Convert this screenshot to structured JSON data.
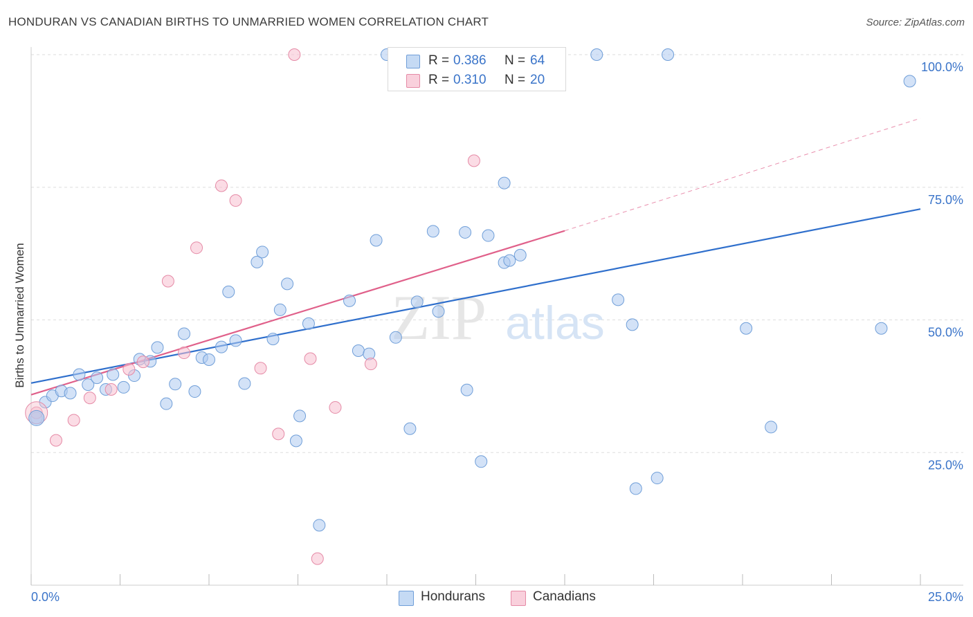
{
  "header": {
    "title": "HONDURAN VS CANADIAN BIRTHS TO UNMARRIED WOMEN CORRELATION CHART",
    "source": "Source: ZipAtlas.com"
  },
  "legend": {
    "rows": [
      {
        "r_label": "R =",
        "r_value": "0.386",
        "n_label": "N =",
        "n_value": "64"
      },
      {
        "r_label": "R =",
        "r_value": "0.310",
        "n_label": "N =",
        "n_value": "20"
      }
    ]
  },
  "bottom_legend": {
    "items": [
      {
        "label": "Hondurans"
      },
      {
        "label": "Canadians"
      }
    ]
  },
  "watermark": {
    "left": "ZIP",
    "right": "atlas"
  },
  "colors": {
    "blue_fill": "#aecbf0",
    "blue_stroke": "#6f9ed8",
    "blue_line": "#2f6fcc",
    "pink_fill": "#f7c0cf",
    "pink_stroke": "#e58aa6",
    "pink_line": "#e0608a",
    "tick_label": "#3a74c9",
    "grid": "#dddddd"
  },
  "chart_data": {
    "type": "scatter",
    "title": "HONDURAN VS CANADIAN BIRTHS TO UNMARRIED WOMEN CORRELATION CHART",
    "xlabel": "",
    "ylabel": "Births to Unmarried Women",
    "xlim": [
      0,
      25
    ],
    "ylim": [
      0,
      100
    ],
    "x_ticks": [
      "0.0%",
      "25.0%"
    ],
    "y_ticks": [
      "25.0%",
      "50.0%",
      "75.0%",
      "100.0%"
    ],
    "y_tick_values": [
      25,
      50,
      75,
      100
    ],
    "grid": true,
    "legend_position": "top-center",
    "series": [
      {
        "name": "Hondurans",
        "r": 0.386,
        "n": 64,
        "trend": {
          "x": [
            0,
            25
          ],
          "y": [
            38.1,
            70.9
          ],
          "dashed_to": null
        },
        "points": [
          [
            0.15,
            31.5
          ],
          [
            0.4,
            34.5
          ],
          [
            0.6,
            35.7
          ],
          [
            0.85,
            36.6
          ],
          [
            1.1,
            36.2
          ],
          [
            1.35,
            39.7
          ],
          [
            1.6,
            37.8
          ],
          [
            1.85,
            39.1
          ],
          [
            2.1,
            36.9
          ],
          [
            2.3,
            39.7
          ],
          [
            2.6,
            37.3
          ],
          [
            2.9,
            39.5
          ],
          [
            3.05,
            42.6
          ],
          [
            3.35,
            42.2
          ],
          [
            3.55,
            44.8
          ],
          [
            3.8,
            34.2
          ],
          [
            4.05,
            37.9
          ],
          [
            4.3,
            47.4
          ],
          [
            4.6,
            36.5
          ],
          [
            4.8,
            42.9
          ],
          [
            5.0,
            42.5
          ],
          [
            5.35,
            44.9
          ],
          [
            5.55,
            55.3
          ],
          [
            5.75,
            46.1
          ],
          [
            6.0,
            38.0
          ],
          [
            6.35,
            60.9
          ],
          [
            6.5,
            62.8
          ],
          [
            6.8,
            46.4
          ],
          [
            7.0,
            51.9
          ],
          [
            7.2,
            56.8
          ],
          [
            7.45,
            27.2
          ],
          [
            7.55,
            31.9
          ],
          [
            7.8,
            49.3
          ],
          [
            8.1,
            11.3
          ],
          [
            8.95,
            53.6
          ],
          [
            9.2,
            44.2
          ],
          [
            9.5,
            43.6
          ],
          [
            9.7,
            65.0
          ],
          [
            10.0,
            100.0
          ],
          [
            10.25,
            46.7
          ],
          [
            10.65,
            29.5
          ],
          [
            10.85,
            53.4
          ],
          [
            11.3,
            66.7
          ],
          [
            11.45,
            51.6
          ],
          [
            11.8,
            100.0
          ],
          [
            12.2,
            66.5
          ],
          [
            12.5,
            100.0
          ],
          [
            12.25,
            36.8
          ],
          [
            12.65,
            23.3
          ],
          [
            12.85,
            65.9
          ],
          [
            13.3,
            60.8
          ],
          [
            13.3,
            75.8
          ],
          [
            13.45,
            61.2
          ],
          [
            13.75,
            62.2
          ],
          [
            15.9,
            100.0
          ],
          [
            16.5,
            53.8
          ],
          [
            16.9,
            49.1
          ],
          [
            17.0,
            18.2
          ],
          [
            17.6,
            20.2
          ],
          [
            17.9,
            100.0
          ],
          [
            20.1,
            48.4
          ],
          [
            20.8,
            29.8
          ],
          [
            23.9,
            48.4
          ],
          [
            24.7,
            95.0
          ]
        ]
      },
      {
        "name": "Canadians",
        "r": 0.31,
        "n": 20,
        "trend": {
          "x": [
            0,
            15
          ],
          "y": [
            35.9,
            66.8
          ],
          "dashed_to": {
            "x": 25,
            "y": 88.0
          }
        },
        "points": [
          [
            0.15,
            32.5
          ],
          [
            0.7,
            27.3
          ],
          [
            1.2,
            31.1
          ],
          [
            1.65,
            35.3
          ],
          [
            2.25,
            36.9
          ],
          [
            2.75,
            40.7
          ],
          [
            3.15,
            42.1
          ],
          [
            3.85,
            57.3
          ],
          [
            4.3,
            43.8
          ],
          [
            4.65,
            63.6
          ],
          [
            5.35,
            75.3
          ],
          [
            5.75,
            72.5
          ],
          [
            6.45,
            40.9
          ],
          [
            6.95,
            28.5
          ],
          [
            7.4,
            100.0
          ],
          [
            7.85,
            42.7
          ],
          [
            8.05,
            5.0
          ],
          [
            8.55,
            33.5
          ],
          [
            9.55,
            41.7
          ],
          [
            12.45,
            80.0
          ]
        ]
      }
    ]
  }
}
